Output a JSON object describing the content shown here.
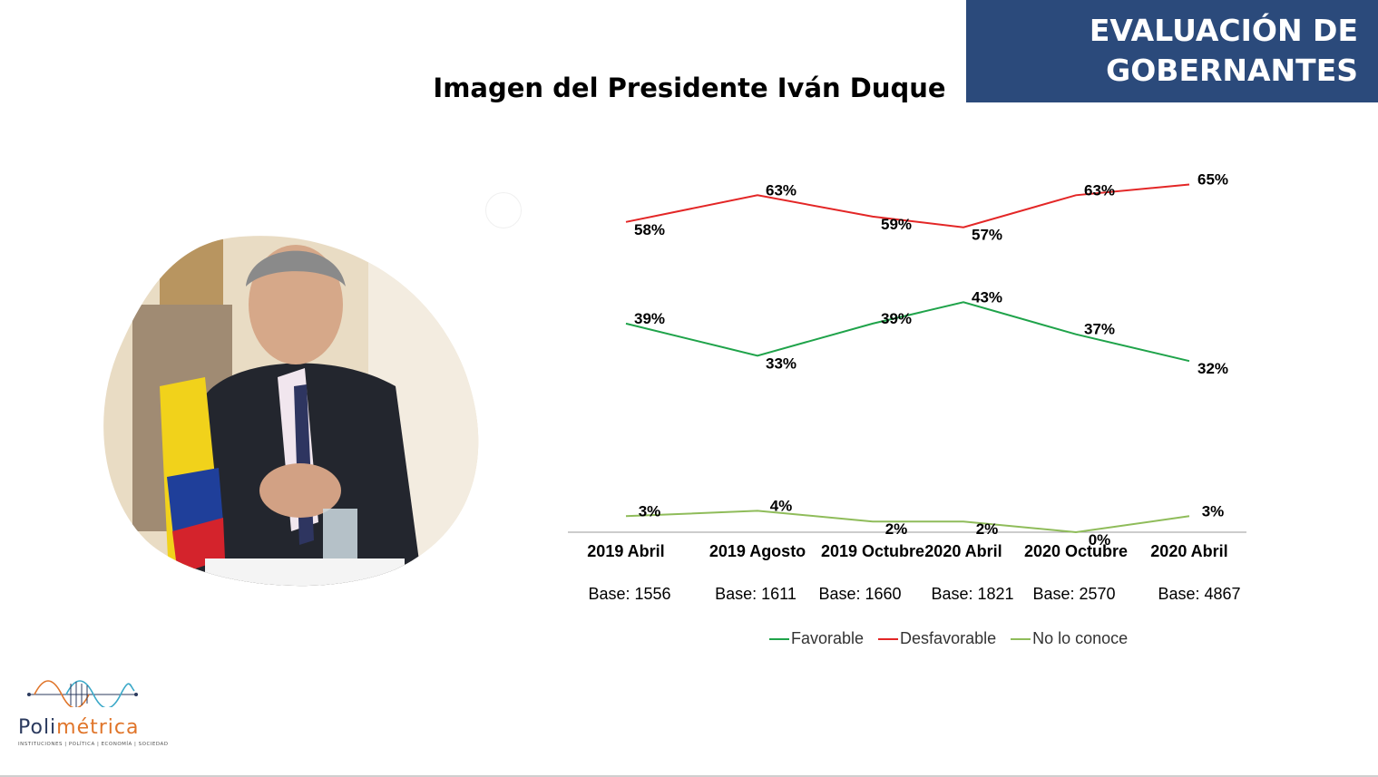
{
  "banner": {
    "line1": "EVALUACIÓN DE",
    "line2": "GOBERNANTES"
  },
  "colors": {
    "banner_bg": "#2b4a7b",
    "favorable": "#1fa34a",
    "desfavorable": "#e32626",
    "no_lo_conoce": "#8fbc5a"
  },
  "chart_data": {
    "type": "line",
    "title": "Imagen del Presidente Iván Duque",
    "categories": [
      "2019 Abril",
      "2019 Agosto",
      "2019 Octubre",
      "2020 Abril",
      "2020 Octubre",
      "2020 Abril"
    ],
    "bases": [
      "Base: 1556",
      "Base: 1611",
      "Base: 1660",
      "Base: 1821",
      "Base: 2570",
      "Base: 4867"
    ],
    "series": [
      {
        "name": "Favorable",
        "color": "#1fa34a",
        "values": [
          39,
          33,
          39,
          43,
          37,
          32
        ],
        "labels": [
          "39%",
          "33%",
          "39%",
          "43%",
          "37%",
          "32%"
        ]
      },
      {
        "name": "Desfavorable",
        "color": "#e32626",
        "values": [
          58,
          63,
          59,
          57,
          63,
          65
        ],
        "labels": [
          "58%",
          "63%",
          "59%",
          "57%",
          "63%",
          "65%"
        ]
      },
      {
        "name": "No lo conoce",
        "color": "#8fbc5a",
        "values": [
          3,
          4,
          2,
          2,
          0,
          3
        ],
        "labels": [
          "3%",
          "4%",
          "2%",
          "2%",
          "0%",
          "3%"
        ]
      }
    ],
    "ylim": [
      0,
      65
    ],
    "grid": false,
    "legend": "bottom"
  },
  "logo": {
    "name_part1": "Poli",
    "name_part2": "métrica",
    "tagline": "INSTITUCIONES | POLÍTICA | ECONOMÍA | SOCIEDAD"
  }
}
